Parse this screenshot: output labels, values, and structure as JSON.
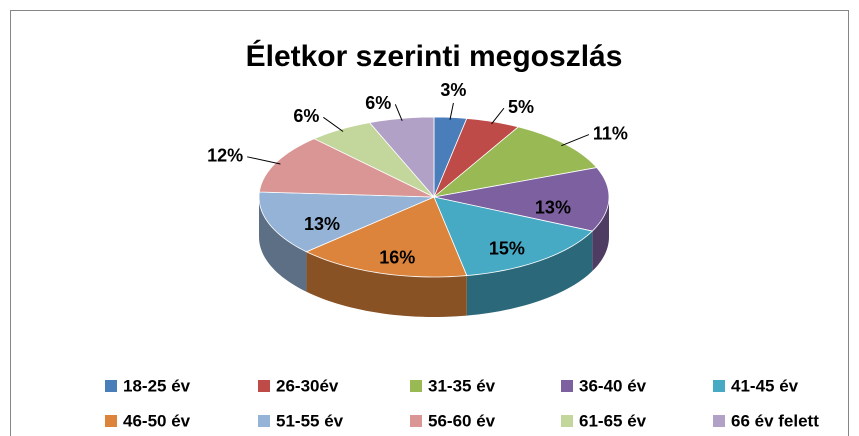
{
  "chart_data": {
    "type": "pie",
    "title": "Életkor szerinti megoszlás",
    "categories": [
      "18-25 év",
      "26-30év",
      "31-35 év",
      "36-40 év",
      "41-45 év",
      "46-50 év",
      "51-55 év",
      "56-60 év",
      "61-65 év",
      "66 év felett"
    ],
    "values": [
      3,
      5,
      11,
      13,
      15,
      16,
      13,
      12,
      6,
      6
    ],
    "value_labels": [
      "3%",
      "5%",
      "11%",
      "13%",
      "15%",
      "16%",
      "13%",
      "12%",
      "6%",
      "6%"
    ],
    "colors": [
      "#4a7ebb",
      "#be4b48",
      "#98b954",
      "#7d60a0",
      "#46aac5",
      "#dc843c",
      "#95b3d7",
      "#d99694",
      "#c3d69b",
      "#b2a1c7"
    ],
    "legend": "bottom"
  }
}
